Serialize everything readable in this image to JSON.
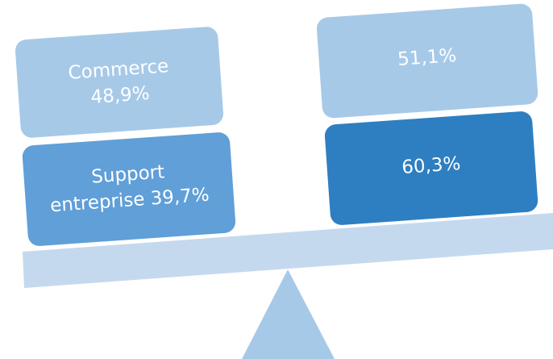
{
  "boxes": [
    {
      "lines": [
        "Commerce",
        "48,9%"
      ]
    },
    {
      "lines": [
        "Support",
        "entreprise 39,7%"
      ]
    },
    {
      "lines": [
        "51,1%"
      ]
    },
    {
      "lines": [
        "60,3%"
      ]
    }
  ]
}
